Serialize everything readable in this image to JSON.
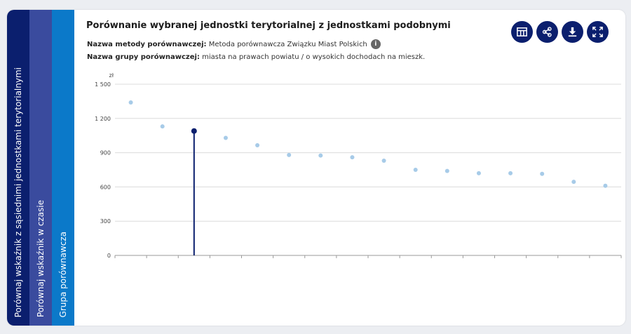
{
  "tabs": [
    {
      "label": "Porównaj wskaźnik z sąsiednimi jednostkami terytorialnymi"
    },
    {
      "label": "Porównaj wskaźnik w czasie"
    },
    {
      "label": "Grupa porównawcza"
    }
  ],
  "header": {
    "title": "Porównanie wybranej jednostki terytorialnej z jednostkami podobnymi",
    "method_label": "Nazwa metody porównawczej:",
    "method_value": "Metoda porównawcza Związku Miast Polskich",
    "group_label": "Nazwa grupy porównawczej:",
    "group_value": "miasta na prawach powiatu / o wysokich dochodach na mieszk."
  },
  "toolbar": [
    {
      "icon": "table-icon"
    },
    {
      "icon": "share-icon"
    },
    {
      "icon": "download-icon"
    },
    {
      "icon": "fullscreen-icon"
    }
  ],
  "colors": {
    "dark": "#0b1f6e",
    "point": "#a7cbe8",
    "highlight": "#0b1f6e"
  },
  "chart_data": {
    "type": "scatter",
    "ylabel": "zł",
    "ylim": [
      0,
      1500
    ],
    "yticks": [
      0,
      300,
      600,
      900,
      1200,
      1500
    ],
    "ytick_labels": [
      "0",
      "300",
      "600",
      "900",
      "1 200",
      "1 500"
    ],
    "grid": true,
    "legend": "none",
    "values": [
      1340,
      1130,
      1090,
      1030,
      965,
      880,
      875,
      860,
      830,
      750,
      740,
      720,
      720,
      715,
      645,
      610
    ],
    "highlight_index": 2
  }
}
